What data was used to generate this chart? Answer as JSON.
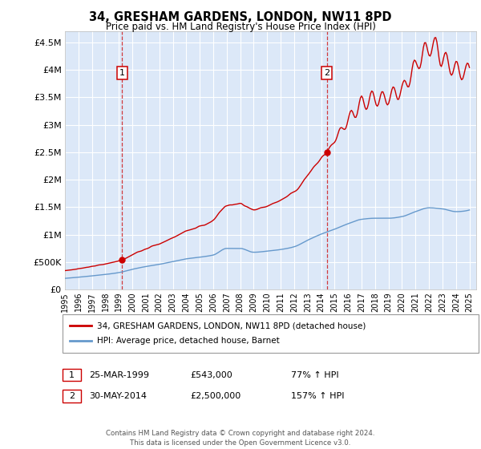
{
  "title": "34, GRESHAM GARDENS, LONDON, NW11 8PD",
  "subtitle": "Price paid vs. HM Land Registry's House Price Index (HPI)",
  "ytick_values": [
    0,
    500000,
    1000000,
    1500000,
    2000000,
    2500000,
    3000000,
    3500000,
    4000000,
    4500000
  ],
  "ylim": [
    0,
    4700000
  ],
  "xlim_start": 1995.0,
  "xlim_end": 2025.5,
  "plot_bg": "#dce8f8",
  "grid_color": "#ffffff",
  "sale1_x": 1999.23,
  "sale1_y": 543000,
  "sale2_x": 2014.42,
  "sale2_y": 2500000,
  "legend_line1": "34, GRESHAM GARDENS, LONDON, NW11 8PD (detached house)",
  "legend_line2": "HPI: Average price, detached house, Barnet",
  "annotation1_date": "25-MAR-1999",
  "annotation1_price": "£543,000",
  "annotation1_hpi": "77% ↑ HPI",
  "annotation2_date": "30-MAY-2014",
  "annotation2_price": "£2,500,000",
  "annotation2_hpi": "157% ↑ HPI",
  "footer": "Contains HM Land Registry data © Crown copyright and database right 2024.\nThis data is licensed under the Open Government Licence v3.0.",
  "red_color": "#cc0000",
  "blue_color": "#6699cc"
}
